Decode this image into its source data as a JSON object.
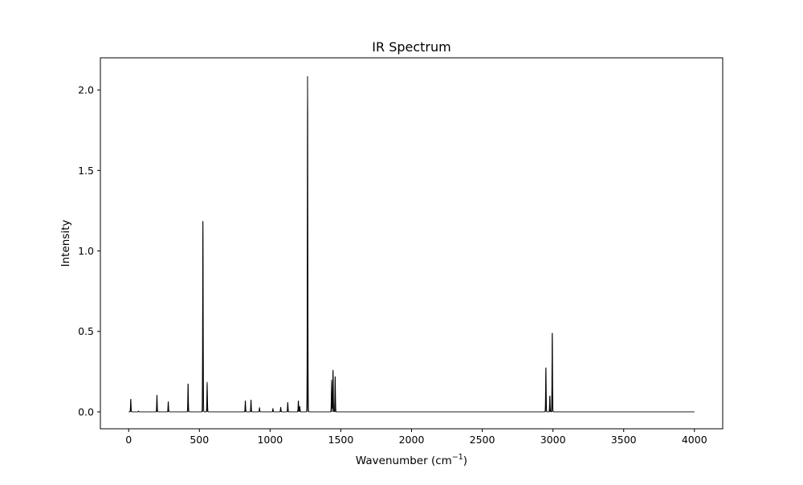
{
  "chart_data": {
    "type": "line",
    "title": "IR Spectrum",
    "xlabel": "Wavenumber (cm",
    "xlabel_superscript": "−1",
    "xlabel_suffix": ")",
    "ylabel": "Intensity",
    "xlim": [
      -200,
      4200
    ],
    "ylim": [
      -0.105,
      2.2
    ],
    "xticks": [
      0,
      500,
      1000,
      1500,
      2000,
      2500,
      3000,
      3500,
      4000
    ],
    "xtick_labels": [
      "0",
      "500",
      "1000",
      "1500",
      "2000",
      "2500",
      "3000",
      "3500",
      "4000"
    ],
    "yticks": [
      0.0,
      0.5,
      1.0,
      1.5,
      2.0
    ],
    "ytick_labels": [
      "0.0",
      "0.5",
      "1.0",
      "1.5",
      "2.0"
    ],
    "grid": false,
    "line_color": "#000000",
    "x_range": [
      0,
      4000
    ],
    "peak_width": 2,
    "series": [
      {
        "peaks": [
          {
            "x": 15,
            "y": 0.08
          },
          {
            "x": 70,
            "y": 0.005
          },
          {
            "x": 200,
            "y": 0.105
          },
          {
            "x": 280,
            "y": 0.065
          },
          {
            "x": 420,
            "y": 0.175
          },
          {
            "x": 525,
            "y": 1.185
          },
          {
            "x": 555,
            "y": 0.185
          },
          {
            "x": 825,
            "y": 0.07
          },
          {
            "x": 865,
            "y": 0.075
          },
          {
            "x": 925,
            "y": 0.025
          },
          {
            "x": 1020,
            "y": 0.02
          },
          {
            "x": 1075,
            "y": 0.03
          },
          {
            "x": 1125,
            "y": 0.06
          },
          {
            "x": 1200,
            "y": 0.07
          },
          {
            "x": 1210,
            "y": 0.035
          },
          {
            "x": 1265,
            "y": 2.085
          },
          {
            "x": 1435,
            "y": 0.2
          },
          {
            "x": 1445,
            "y": 0.26
          },
          {
            "x": 1460,
            "y": 0.22
          },
          {
            "x": 2950,
            "y": 0.275
          },
          {
            "x": 2978,
            "y": 0.1
          },
          {
            "x": 2995,
            "y": 0.49
          }
        ]
      }
    ]
  }
}
